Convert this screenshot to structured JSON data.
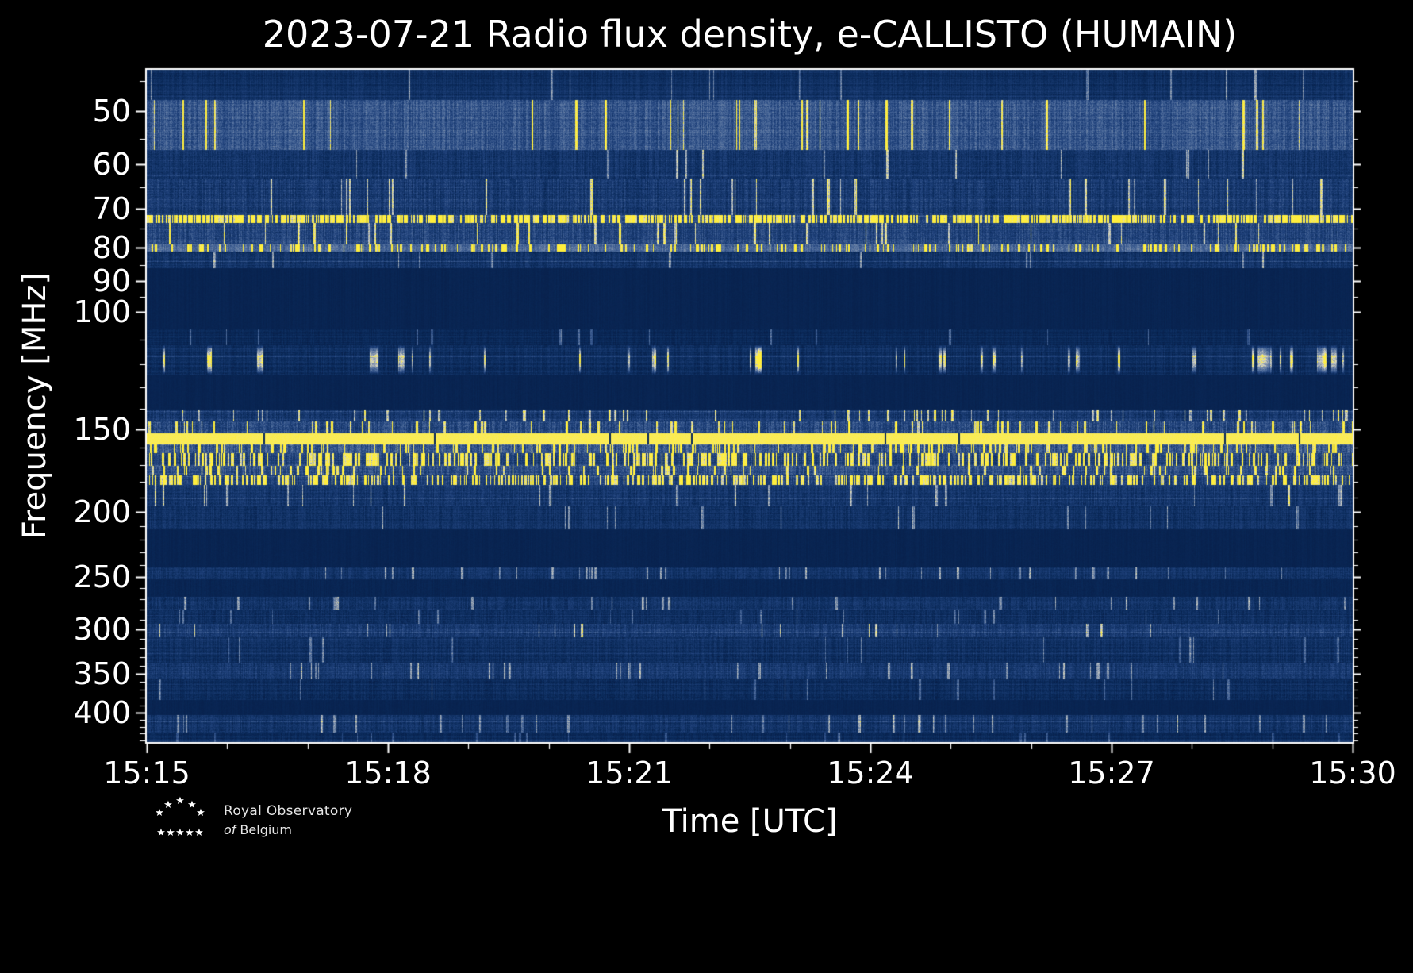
{
  "page": {
    "background": "#000000"
  },
  "footer_logo": {
    "line1": "Royal Observatory",
    "line2_italic": "of",
    "line2_rest": "Belgium"
  },
  "chart_data": {
    "type": "heatmap",
    "title": "2023-07-21 Radio flux density, e-CALLISTO (HUMAIN)",
    "xlabel": "Time [UTC]",
    "ylabel": "Frequency [MHz]",
    "x_ticks": [
      "15:15",
      "15:18",
      "15:21",
      "15:24",
      "15:27",
      "15:30"
    ],
    "x_range_minutes": 15,
    "x_major_every_minutes": 3,
    "y_ticks": [
      50,
      60,
      70,
      80,
      90,
      100,
      150,
      200,
      250,
      300,
      350,
      400
    ],
    "y_scale": "log",
    "y_axis_inverted_low_freq_at_top": true,
    "freq_range_mhz": [
      43.3,
      443
    ],
    "grid": false,
    "legend": "none",
    "colormap": {
      "stops": [
        [
          0.0,
          "#071c45"
        ],
        [
          0.12,
          "#0a2a5a"
        ],
        [
          0.32,
          "#20427c"
        ],
        [
          0.52,
          "#53709e"
        ],
        [
          0.7,
          "#9aa5b2"
        ],
        [
          0.82,
          "#cdd0cb"
        ],
        [
          0.92,
          "#f2e87e"
        ],
        [
          1.0,
          "#ffee3c"
        ]
      ]
    },
    "bands": [
      {
        "f": [
          43.3,
          48
        ],
        "base": 0.16,
        "noise": 0.1,
        "spike": 0.01,
        "spikeV": 0.6,
        "desc": "faint blue noise at top edge"
      },
      {
        "f": [
          48,
          57
        ],
        "base": 0.4,
        "noise": 0.18,
        "spike": 0.02,
        "spikeV": 0.8,
        "desc": "light gray-blue noise band ~50-55 MHz"
      },
      {
        "f": [
          57,
          63
        ],
        "base": 0.22,
        "noise": 0.14,
        "spike": 0.01,
        "spikeV": 0.7,
        "desc": "blue speckle noise"
      },
      {
        "f": [
          63,
          71.5
        ],
        "base": 0.25,
        "noise": 0.16,
        "spike": 0.02,
        "spikeV": 0.75,
        "desc": "blue speckle noise"
      },
      {
        "f": [
          71.5,
          73.5
        ],
        "base": 0.35,
        "noise": 0.15,
        "spike": 0.5,
        "spikeV": 1.0,
        "desc": "dashed bright yellow RFI line ~73 MHz"
      },
      {
        "f": [
          73.5,
          79
        ],
        "base": 0.32,
        "noise": 0.17,
        "spike": 0.03,
        "spikeV": 0.8,
        "desc": "gray-blue noise"
      },
      {
        "f": [
          79,
          81
        ],
        "base": 0.48,
        "noise": 0.15,
        "spike": 0.15,
        "spikeV": 0.9,
        "desc": "pale yellow line ~80 MHz"
      },
      {
        "f": [
          81,
          86
        ],
        "base": 0.2,
        "noise": 0.13,
        "spike": 0.01,
        "spikeV": 0.6,
        "desc": "blue speckle noise"
      },
      {
        "f": [
          86,
          106
        ],
        "base": 0.07,
        "noise": 0.03,
        "spike": 0.0,
        "desc": "quiet dark navy band 86-106 MHz"
      },
      {
        "f": [
          106,
          112
        ],
        "base": 0.11,
        "noise": 0.07,
        "spike": 0.01,
        "spikeV": 0.5,
        "desc": "faint speckle"
      },
      {
        "f": [
          112,
          124
        ],
        "base": 0.15,
        "noise": 0.1,
        "spike": 0.09,
        "spikeV": 1.0,
        "blob": true,
        "desc": "airband RFI yellow blobs 112-124 MHz"
      },
      {
        "f": [
          124,
          140
        ],
        "base": 0.07,
        "noise": 0.03,
        "spike": 0.0,
        "desc": "quiet dark navy band"
      },
      {
        "f": [
          140,
          146
        ],
        "base": 0.22,
        "noise": 0.15,
        "spike": 0.04,
        "spikeV": 0.8,
        "desc": "speckle band"
      },
      {
        "f": [
          146,
          152
        ],
        "base": 0.35,
        "noise": 0.2,
        "spike": 0.06,
        "spikeV": 0.9,
        "desc": "gray speckle band below 150 MHz"
      },
      {
        "f": [
          152,
          158
        ],
        "base": 0.96,
        "noise": 0.04,
        "solid": true,
        "gap": 0.012,
        "desc": "continuous bright yellow RFI band ~155 MHz with thin dark vertical gaps"
      },
      {
        "f": [
          158,
          163
        ],
        "base": 0.4,
        "noise": 0.2,
        "spike": 0.12,
        "spikeV": 0.95,
        "desc": "bright mixed band"
      },
      {
        "f": [
          163,
          170
        ],
        "base": 0.3,
        "noise": 0.16,
        "spike": 0.22,
        "spikeV": 1.0,
        "desc": "yellow vertical streaks 163-170 MHz"
      },
      {
        "f": [
          170,
          176
        ],
        "base": 0.36,
        "noise": 0.18,
        "spike": 0.08,
        "spikeV": 0.9,
        "desc": "gray band"
      },
      {
        "f": [
          176,
          182
        ],
        "base": 0.3,
        "noise": 0.15,
        "spike": 0.3,
        "spikeV": 1.0,
        "desc": "dense yellow speckle line ~180 MHz"
      },
      {
        "f": [
          182,
          196
        ],
        "base": 0.22,
        "noise": 0.14,
        "spike": 0.02,
        "spikeV": 0.7,
        "desc": "blue speckle"
      },
      {
        "f": [
          196,
          212
        ],
        "base": 0.18,
        "noise": 0.12,
        "spike": 0.01,
        "spikeV": 0.6,
        "desc": "blue speckle around 200 MHz"
      },
      {
        "f": [
          212,
          242
        ],
        "base": 0.07,
        "noise": 0.03,
        "spike": 0.0,
        "desc": "quiet dark navy band"
      },
      {
        "f": [
          242,
          252
        ],
        "base": 0.2,
        "noise": 0.12,
        "spike": 0.02,
        "spikeV": 0.6,
        "desc": "speckle line ~250 MHz"
      },
      {
        "f": [
          252,
          268
        ],
        "base": 0.08,
        "noise": 0.04,
        "spike": 0.0,
        "desc": "quiet dark navy band"
      },
      {
        "f": [
          268,
          280
        ],
        "base": 0.2,
        "noise": 0.13,
        "spike": 0.02,
        "spikeV": 0.6,
        "desc": "blue speckle"
      },
      {
        "f": [
          280,
          294
        ],
        "base": 0.16,
        "noise": 0.11,
        "spike": 0.01,
        "spikeV": 0.5,
        "desc": "blue speckle"
      },
      {
        "f": [
          294,
          308
        ],
        "base": 0.26,
        "noise": 0.15,
        "spike": 0.02,
        "spikeV": 0.7,
        "desc": "lighter line ~300 MHz"
      },
      {
        "f": [
          308,
          336
        ],
        "base": 0.16,
        "noise": 0.11,
        "spike": 0.01,
        "spikeV": 0.5,
        "desc": "blue speckle"
      },
      {
        "f": [
          336,
          356
        ],
        "base": 0.24,
        "noise": 0.14,
        "spike": 0.02,
        "spikeV": 0.6,
        "desc": "lighter band ~350 MHz"
      },
      {
        "f": [
          356,
          382
        ],
        "base": 0.14,
        "noise": 0.1,
        "spike": 0.01,
        "spikeV": 0.5,
        "desc": "blue speckle"
      },
      {
        "f": [
          382,
          403
        ],
        "base": 0.07,
        "noise": 0.03,
        "spike": 0.0,
        "desc": "quiet dark navy band near 400 MHz"
      },
      {
        "f": [
          403,
          428
        ],
        "base": 0.2,
        "noise": 0.13,
        "spike": 0.02,
        "spikeV": 0.6,
        "desc": "speckle band ~410-425 MHz"
      },
      {
        "f": [
          428,
          443
        ],
        "base": 0.12,
        "noise": 0.08,
        "spike": 0.01,
        "spikeV": 0.4,
        "desc": "faint speckle at bottom edge"
      }
    ]
  }
}
